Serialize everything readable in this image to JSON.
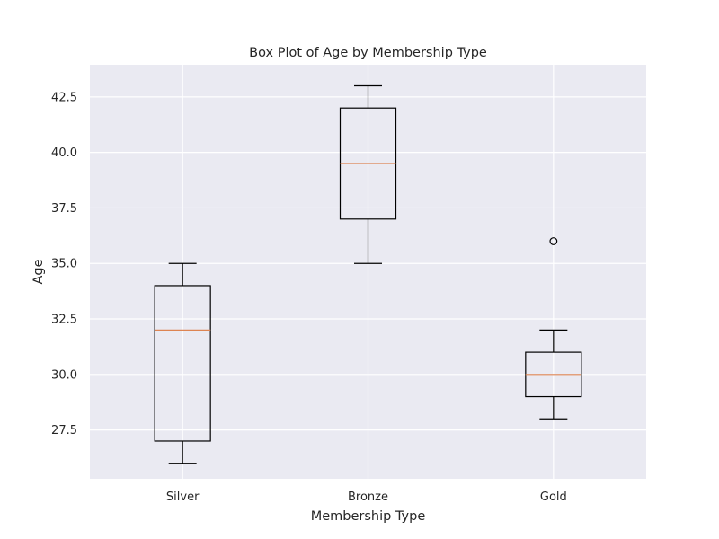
{
  "chart_data": {
    "type": "box",
    "title": "Box Plot of Age by Membership Type",
    "xlabel": "Membership Type",
    "ylabel": "Age",
    "ylim": [
      25.3,
      43.95
    ],
    "yticks": [
      27.5,
      30.0,
      32.5,
      35.0,
      37.5,
      40.0,
      42.5
    ],
    "yticklabels": [
      "27.5",
      "30.0",
      "32.5",
      "35.0",
      "37.5",
      "40.0",
      "42.5"
    ],
    "categories": [
      "Silver",
      "Bronze",
      "Gold"
    ],
    "boxes": [
      {
        "category": "Silver",
        "whisker_low": 26.0,
        "q1": 27.0,
        "median": 32.0,
        "q3": 34.0,
        "whisker_high": 35.0,
        "outliers": []
      },
      {
        "category": "Bronze",
        "whisker_low": 35.0,
        "q1": 37.0,
        "median": 39.5,
        "q3": 42.0,
        "whisker_high": 43.0,
        "outliers": []
      },
      {
        "category": "Gold",
        "whisker_low": 28.0,
        "q1": 29.0,
        "median": 30.0,
        "q3": 31.0,
        "whisker_high": 32.0,
        "outliers": [
          36.0
        ]
      }
    ],
    "grid": true,
    "colors": {
      "background": "#eaeaf2",
      "grid": "#ffffff",
      "box": "#000000",
      "median": "#dd8452"
    }
  }
}
